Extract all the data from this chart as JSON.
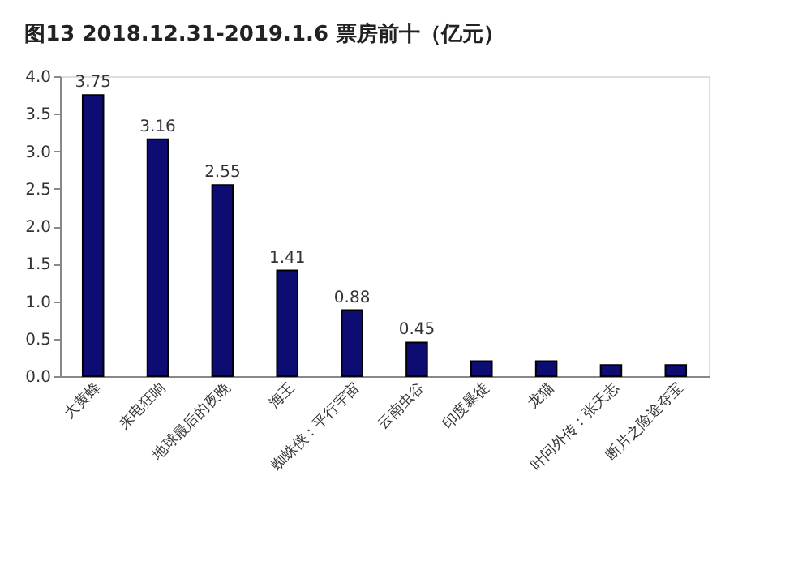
{
  "chart_data": {
    "type": "bar",
    "title": "图13 2018.12.31-2019.1.6 票房前十（亿元）",
    "categories": [
      "大黄蜂",
      "来电狂响",
      "地球最后的夜晚",
      "海王",
      "蜘蛛侠：平行宇宙",
      "云南虫谷",
      "印度暴徒",
      "龙猫",
      "叶问外传：张天志",
      "断片之险途夺宝"
    ],
    "values": [
      3.75,
      3.16,
      2.55,
      1.41,
      0.88,
      0.45,
      0.2,
      0.2,
      0.15,
      0.15
    ],
    "value_labels": [
      "3.75",
      "3.16",
      "2.55",
      "1.41",
      "0.88",
      "0.45",
      null,
      null,
      null,
      null
    ],
    "color": "#0c0c72",
    "ylim": [
      0,
      4
    ],
    "yticks": [
      {
        "value": 0,
        "label": "0.0"
      },
      {
        "value": 0.5,
        "label": "0.5"
      },
      {
        "value": 1,
        "label": "1.0"
      },
      {
        "value": 1.5,
        "label": "1.5"
      },
      {
        "value": 2,
        "label": "2.0"
      },
      {
        "value": 2.5,
        "label": "2.5"
      },
      {
        "value": 3,
        "label": "3.0"
      },
      {
        "value": 3.5,
        "label": "3.5"
      },
      {
        "value": 4,
        "label": "4.0"
      }
    ],
    "grid": false
  }
}
